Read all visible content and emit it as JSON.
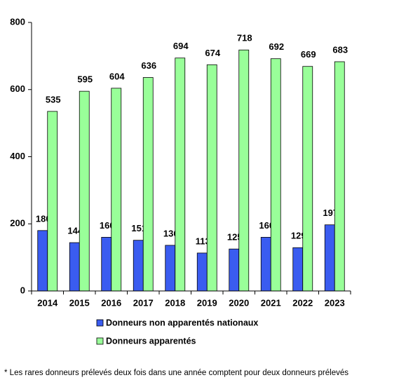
{
  "chart_data": {
    "type": "bar",
    "categories": [
      "2014",
      "2015",
      "2016",
      "2017",
      "2018",
      "2019",
      "2020",
      "2021",
      "2022",
      "2023"
    ],
    "series": [
      {
        "name": "Donneurs non apparentés nationaux",
        "color": "#3a5cf0",
        "values": [
          180,
          144,
          160,
          151,
          136,
          113,
          125,
          160,
          129,
          197
        ]
      },
      {
        "name": "Donneurs apparentés",
        "color": "#99ff99",
        "values": [
          535,
          595,
          604,
          636,
          694,
          674,
          718,
          692,
          669,
          683
        ]
      }
    ],
    "ylim": [
      0,
      800
    ],
    "yticks": [
      0,
      200,
      400,
      600,
      800
    ],
    "grid": false,
    "footnote": "* Les rares donneurs prélevés deux fois dans une année comptent pour deux donneurs prélevés"
  }
}
